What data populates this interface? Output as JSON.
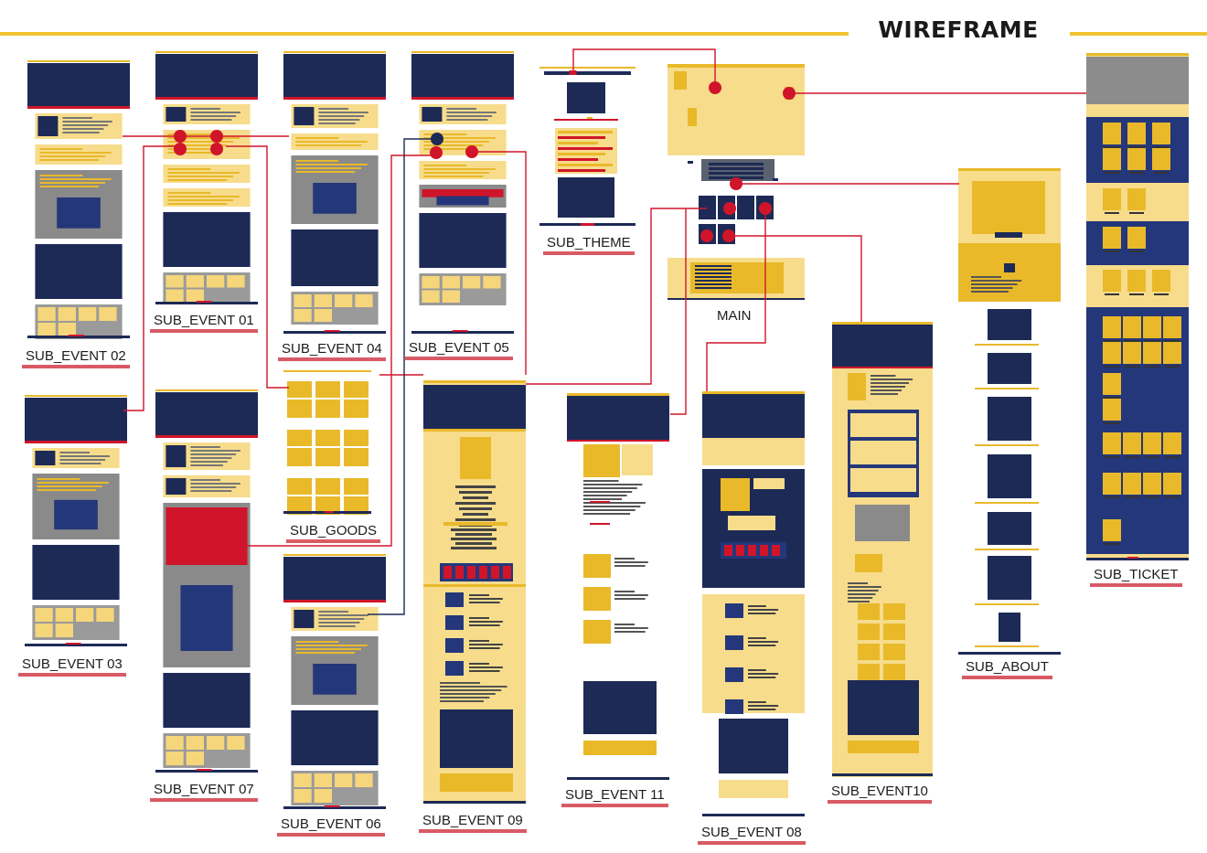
{
  "title": "WIREFRAME",
  "colors": {
    "navy": "#1d2a56",
    "yellow": "#e9b92a",
    "pale": "#f7dc8c",
    "gray": "#8a8a8a",
    "red": "#d0152a",
    "underline": "#d85a64"
  },
  "pages": [
    {
      "id": "sub_event_02",
      "label": "SUB_EVENT 02"
    },
    {
      "id": "sub_event_01",
      "label": "SUB_EVENT 01"
    },
    {
      "id": "sub_event_04",
      "label": "SUB_EVENT 04"
    },
    {
      "id": "sub_event_05",
      "label": "SUB_EVENT 05"
    },
    {
      "id": "sub_theme",
      "label": "SUB_THEME"
    },
    {
      "id": "main",
      "label": "MAIN"
    },
    {
      "id": "sub_ticket",
      "label": "SUB_TICKET"
    },
    {
      "id": "sub_event_03",
      "label": "SUB_EVENT 03"
    },
    {
      "id": "sub_event_07",
      "label": "SUB_EVENT 07"
    },
    {
      "id": "sub_goods",
      "label": "SUB_GOODS"
    },
    {
      "id": "sub_event_06",
      "label": "SUB_EVENT 06"
    },
    {
      "id": "sub_event_09",
      "label": "SUB_EVENT 09"
    },
    {
      "id": "sub_event_11",
      "label": "SUB_EVENT 11"
    },
    {
      "id": "sub_event_08",
      "label": "SUB_EVENT 08"
    },
    {
      "id": "sub_event10",
      "label": "SUB_EVENT10"
    },
    {
      "id": "sub_about",
      "label": "SUB_ABOUT"
    }
  ]
}
